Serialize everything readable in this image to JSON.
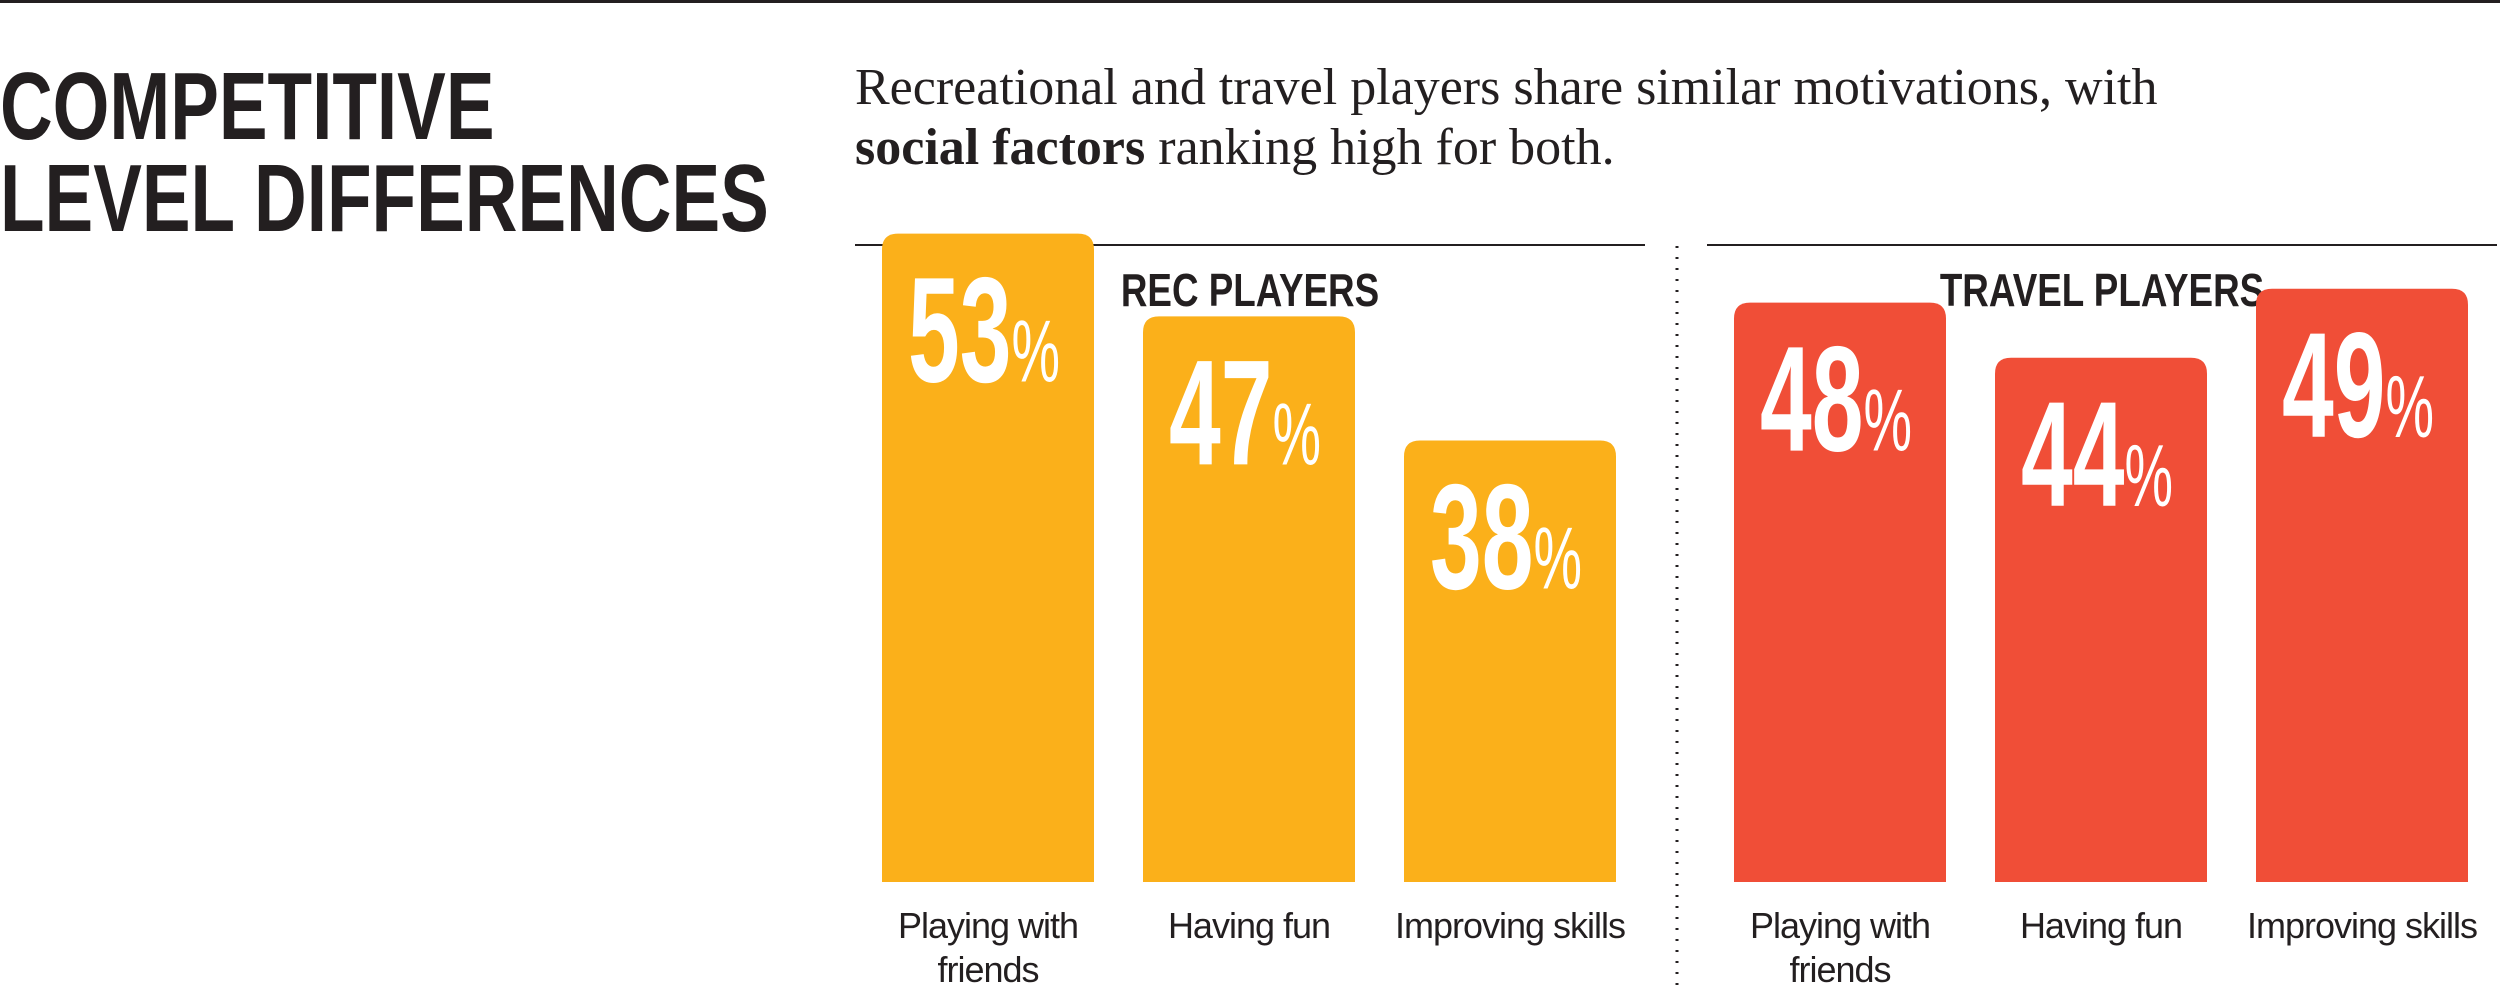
{
  "header": {
    "title": [
      "COMPETITIVE",
      "LEVEL DIFFERENCES"
    ],
    "subtitle": {
      "line1": "Recreational and travel players share similar motivations, with",
      "emphasis": "social factors",
      "rest": "ranking high for both."
    }
  },
  "chart_data": [
    {
      "type": "bar",
      "title": "REC PLAYERS",
      "categories": [
        "Playing with friends",
        "Having fun",
        "Improving skills"
      ],
      "values": [
        53,
        47,
        38
      ],
      "value_labels": [
        "53%",
        "47%",
        "38%"
      ],
      "color": "#fbb01a",
      "ylim": [
        6,
        55
      ]
    },
    {
      "type": "bar",
      "title": "TRAVEL PLAYERS",
      "categories": [
        "Playing with friends",
        "Having fun",
        "Improving skills"
      ],
      "values": [
        48,
        44,
        49
      ],
      "value_labels": [
        "48%",
        "44%",
        "49%"
      ],
      "color": "#f04e37",
      "ylim": [
        6,
        55
      ]
    }
  ]
}
